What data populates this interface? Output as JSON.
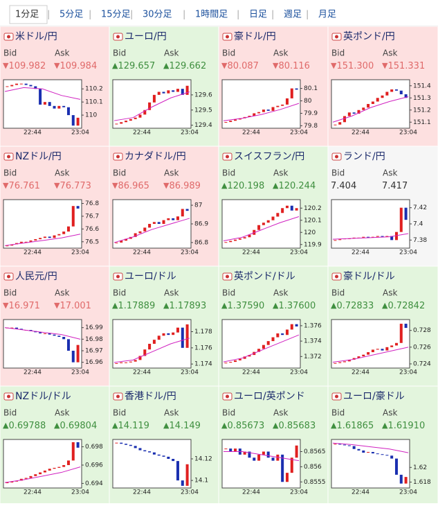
{
  "tabs": [
    "1分足",
    "5分足",
    "15分足",
    "30分足",
    "1時間足",
    "日足",
    "週足",
    "月足"
  ],
  "active_tab": 0,
  "bid_label": "Bid",
  "ask_label": "Ask",
  "time_labels": [
    "22:44",
    "23:04"
  ],
  "panels": [
    {
      "name": "米ドル/円",
      "trend": "down",
      "arrow": "▼",
      "bid": "109.982",
      "ask": "109.984",
      "ylim": [
        109.9,
        110.27
      ],
      "yticks": [
        110.2,
        110.1,
        110
      ],
      "closes": [
        110.22,
        110.23,
        110.24,
        110.24,
        110.23,
        110.22,
        110.2,
        110.08,
        110.1,
        110.07,
        110.05,
        110.07,
        110.06,
        110.0,
        109.92,
        109.98
      ],
      "ma": [
        110.18,
        110.21,
        110.2,
        110.15,
        110.12
      ]
    },
    {
      "name": "ユーロ/円",
      "trend": "up",
      "arrow": "▲",
      "bid": "129.657",
      "ask": "129.662",
      "ylim": [
        129.38,
        129.7
      ],
      "yticks": [
        129.6,
        129.5,
        129.4
      ],
      "closes": [
        129.41,
        129.42,
        129.43,
        129.44,
        129.45,
        129.47,
        129.5,
        129.55,
        129.6,
        129.62,
        129.61,
        129.63,
        129.62,
        129.64,
        129.6,
        129.66
      ],
      "ma": [
        129.43,
        129.45,
        129.52,
        129.58,
        129.62
      ]
    },
    {
      "name": "豪ドル/円",
      "trend": "down",
      "arrow": "▼",
      "bid": "80.087",
      "ask": "80.116",
      "ylim": [
        79.78,
        80.17
      ],
      "yticks": [
        80.1,
        80,
        79.9,
        79.8
      ],
      "closes": [
        79.83,
        79.84,
        79.85,
        79.86,
        79.87,
        79.88,
        79.9,
        79.91,
        79.93,
        79.92,
        79.95,
        79.96,
        79.97,
        80.02,
        80.1,
        80.09
      ],
      "ma": [
        79.84,
        79.86,
        79.89,
        79.93,
        79.98
      ]
    },
    {
      "name": "英ポンド/円",
      "trend": "down",
      "arrow": "▼",
      "bid": "151.300",
      "ask": "151.331",
      "ylim": [
        151.05,
        151.45
      ],
      "yticks": [
        151.4,
        151.3,
        151.2,
        151.1
      ],
      "closes": [
        151.08,
        151.1,
        151.15,
        151.18,
        151.17,
        151.2,
        151.22,
        151.25,
        151.27,
        151.3,
        151.32,
        151.35,
        151.37,
        151.36,
        151.33,
        151.3
      ],
      "ma": [
        151.1,
        151.15,
        151.22,
        151.27,
        151.31
      ]
    },
    {
      "name": "NZドル/円",
      "trend": "down",
      "arrow": "▼",
      "bid": "76.761",
      "ask": "76.773",
      "ylim": [
        76.45,
        76.83
      ],
      "yticks": [
        76.8,
        76.7,
        76.6,
        76.5
      ],
      "closes": [
        76.47,
        76.48,
        76.49,
        76.5,
        76.5,
        76.51,
        76.52,
        76.53,
        76.54,
        76.53,
        76.55,
        76.56,
        76.58,
        76.62,
        76.78,
        76.76
      ],
      "ma": [
        76.47,
        76.49,
        76.51,
        76.53,
        76.56
      ]
    },
    {
      "name": "カナダドル/円",
      "trend": "down",
      "arrow": "▼",
      "bid": "86.965",
      "ask": "86.989",
      "ylim": [
        86.77,
        87.03
      ],
      "yticks": [
        87,
        86.9,
        86.8
      ],
      "closes": [
        86.8,
        86.81,
        86.82,
        86.83,
        86.85,
        86.86,
        86.88,
        86.9,
        86.91,
        86.9,
        86.92,
        86.93,
        86.92,
        86.94,
        86.98,
        86.97
      ],
      "ma": [
        86.8,
        86.83,
        86.87,
        86.9,
        86.93
      ]
    },
    {
      "name": "スイスフラン/円",
      "trend": "up",
      "arrow": "▲",
      "bid": "120.198",
      "ask": "120.244",
      "ylim": [
        119.87,
        120.27
      ],
      "yticks": [
        120.2,
        120.1,
        120,
        119.9
      ],
      "closes": [
        119.92,
        119.93,
        119.94,
        119.95,
        119.96,
        119.98,
        120.02,
        120.06,
        120.08,
        120.1,
        120.13,
        120.16,
        120.2,
        120.22,
        120.18,
        120.2
      ],
      "ma": [
        119.93,
        119.96,
        120.02,
        120.08,
        120.13
      ]
    },
    {
      "name": "ランド/円",
      "trend": "flat",
      "bid": "7.404",
      "ask": "7.417",
      "ylim": [
        7.37,
        7.43
      ],
      "yticks": [
        7.42,
        7.4,
        7.38
      ],
      "closes": [
        7.38,
        7.381,
        7.382,
        7.382,
        7.383,
        7.383,
        7.384,
        7.383,
        7.384,
        7.385,
        7.384,
        7.385,
        7.38,
        7.39,
        7.42,
        7.405
      ],
      "ma": [
        7.381,
        7.382,
        7.383,
        7.384,
        7.388
      ]
    },
    {
      "name": "人民元/円",
      "trend": "down",
      "arrow": "▼",
      "bid": "16.971",
      "ask": "17.001",
      "ylim": [
        16.955,
        16.997
      ],
      "yticks": [
        16.99,
        16.98,
        16.97,
        16.96
      ],
      "closes": [
        16.99,
        16.99,
        16.989,
        16.988,
        16.988,
        16.987,
        16.986,
        16.985,
        16.985,
        16.984,
        16.983,
        16.982,
        16.98,
        16.97,
        16.96,
        16.975
      ],
      "ma": [
        16.99,
        16.988,
        16.986,
        16.984,
        16.98
      ]
    },
    {
      "name": "ユーロ/ドル",
      "trend": "up",
      "arrow": "▲",
      "bid": "1.17889",
      "ask": "1.17893",
      "ylim": [
        1.1735,
        1.1795
      ],
      "yticks": [
        1.178,
        1.176,
        1.174
      ],
      "closes": [
        1.1741,
        1.1742,
        1.1742,
        1.1743,
        1.1745,
        1.175,
        1.1758,
        1.1765,
        1.177,
        1.1775,
        1.1778,
        1.1776,
        1.1779,
        1.1785,
        1.176,
        1.1789
      ],
      "ma": [
        1.1742,
        1.1745,
        1.1755,
        1.1765,
        1.1772
      ]
    },
    {
      "name": "英ポンド/ドル",
      "trend": "up",
      "arrow": "▲",
      "bid": "1.37590",
      "ask": "1.37600",
      "ylim": [
        1.3705,
        1.3768
      ],
      "yticks": [
        1.376,
        1.374,
        1.372
      ],
      "closes": [
        1.3712,
        1.3713,
        1.3715,
        1.3717,
        1.372,
        1.3722,
        1.3726,
        1.373,
        1.3735,
        1.374,
        1.3745,
        1.375,
        1.3748,
        1.3755,
        1.3762,
        1.3759
      ],
      "ma": [
        1.3713,
        1.3718,
        1.3728,
        1.3738,
        1.3748
      ]
    },
    {
      "name": "豪ドル/ドル",
      "trend": "up",
      "arrow": "▲",
      "bid": "0.72833",
      "ask": "0.72842",
      "ylim": [
        0.7235,
        0.7293
      ],
      "yticks": [
        0.728,
        0.726,
        0.724
      ],
      "closes": [
        0.7241,
        0.7242,
        0.7243,
        0.7245,
        0.7247,
        0.7249,
        0.7251,
        0.7254,
        0.7257,
        0.7258,
        0.7256,
        0.726,
        0.7262,
        0.7265,
        0.7288,
        0.7283
      ],
      "ma": [
        0.7242,
        0.7245,
        0.725,
        0.7255,
        0.726
      ]
    },
    {
      "name": "NZドル/ドル",
      "trend": "up",
      "arrow": "▲",
      "bid": "0.69788",
      "ask": "0.69804",
      "ylim": [
        0.6935,
        0.6988
      ],
      "yticks": [
        0.698,
        0.696,
        0.694
      ],
      "closes": [
        0.6941,
        0.6942,
        0.6943,
        0.6945,
        0.6946,
        0.6948,
        0.695,
        0.6952,
        0.6954,
        0.6956,
        0.6957,
        0.6958,
        0.696,
        0.6965,
        0.6985,
        0.6979
      ],
      "ma": [
        0.6941,
        0.6944,
        0.6948,
        0.6952,
        0.6958
      ]
    },
    {
      "name": "香港ドル/円",
      "trend": "up",
      "arrow": "▲",
      "bid": "14.119",
      "ask": "14.149",
      "ylim": [
        14.093,
        14.138
      ],
      "yticks": [
        14.12,
        14.1
      ],
      "closes": [
        14.135,
        14.134,
        14.133,
        14.132,
        14.13,
        14.128,
        14.127,
        14.126,
        14.124,
        14.123,
        14.122,
        14.12,
        14.118,
        14.1,
        14.095,
        14.115
      ]
    },
    {
      "name": "ユーロ/英ポンド",
      "trend": "up",
      "arrow": "▲",
      "bid": "0.85673",
      "ask": "0.85683",
      "ylim": [
        0.8553,
        0.8569
      ],
      "yticks": [
        0.8565,
        0.856,
        0.8555
      ],
      "closes": [
        0.8566,
        0.8565,
        0.8566,
        0.8564,
        0.8565,
        0.8563,
        0.8562,
        0.8564,
        0.8565,
        0.8563,
        0.8562,
        0.8564,
        0.8555,
        0.8558,
        0.8563,
        0.8567
      ],
      "ma": [
        0.8565,
        0.8565,
        0.8564,
        0.8563,
        0.8562
      ]
    },
    {
      "name": "ユーロ/豪ドル",
      "trend": "up",
      "arrow": "▲",
      "bid": "1.61865",
      "ask": "1.61910",
      "ylim": [
        1.6172,
        1.6238
      ],
      "yticks": [
        1.62,
        1.618
      ],
      "closes": [
        1.6232,
        1.6231,
        1.623,
        1.6229,
        1.6225,
        1.6223,
        1.622,
        1.6221,
        1.6219,
        1.6218,
        1.6217,
        1.6216,
        1.6212,
        1.619,
        1.6178,
        1.6187
      ],
      "ma": [
        1.6233,
        1.6231,
        1.6228,
        1.6225,
        1.622
      ]
    }
  ]
}
